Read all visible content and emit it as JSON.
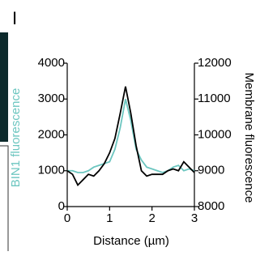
{
  "panel_label": "I",
  "chart_data": {
    "type": "line",
    "xlabel": "Distance (µm)",
    "ylabel": "BIN1 fluorescence",
    "y2label": "Membrane fluorescence",
    "x": [
      0,
      0.125,
      0.25,
      0.375,
      0.5,
      0.625,
      0.75,
      0.875,
      1.0,
      1.125,
      1.25,
      1.375,
      1.5,
      1.625,
      1.75,
      1.875,
      2.0,
      2.125,
      2.25,
      2.375,
      2.5,
      2.625,
      2.75,
      2.875,
      3.0
    ],
    "series": [
      {
        "name": "BIN1 fluorescence",
        "color": "#6cc6c0",
        "axis": "y",
        "values": [
          1000,
          1000,
          950,
          950,
          1000,
          1100,
          1150,
          1200,
          1250,
          1600,
          2200,
          3000,
          2400,
          1600,
          1300,
          1100,
          1050,
          1000,
          950,
          1000,
          1100,
          1150,
          1000,
          1050,
          1000
        ]
      },
      {
        "name": "Membrane fluorescence",
        "color": "#000000",
        "axis": "y2",
        "values": [
          9000,
          8900,
          8600,
          8750,
          8900,
          8850,
          9000,
          9200,
          9500,
          9900,
          10600,
          11350,
          10600,
          9700,
          9000,
          8850,
          8900,
          8900,
          8900,
          9000,
          9050,
          9000,
          9250,
          9100,
          8950
        ]
      }
    ],
    "xlim": [
      0,
      3
    ],
    "xticks": [
      0,
      1,
      2,
      3
    ],
    "ylim": [
      0,
      4000
    ],
    "yticks": [
      0,
      1000,
      2000,
      3000,
      4000
    ],
    "y2lim": [
      8000,
      12000
    ],
    "y2ticks": [
      8000,
      9000,
      10000,
      11000,
      12000
    ]
  }
}
